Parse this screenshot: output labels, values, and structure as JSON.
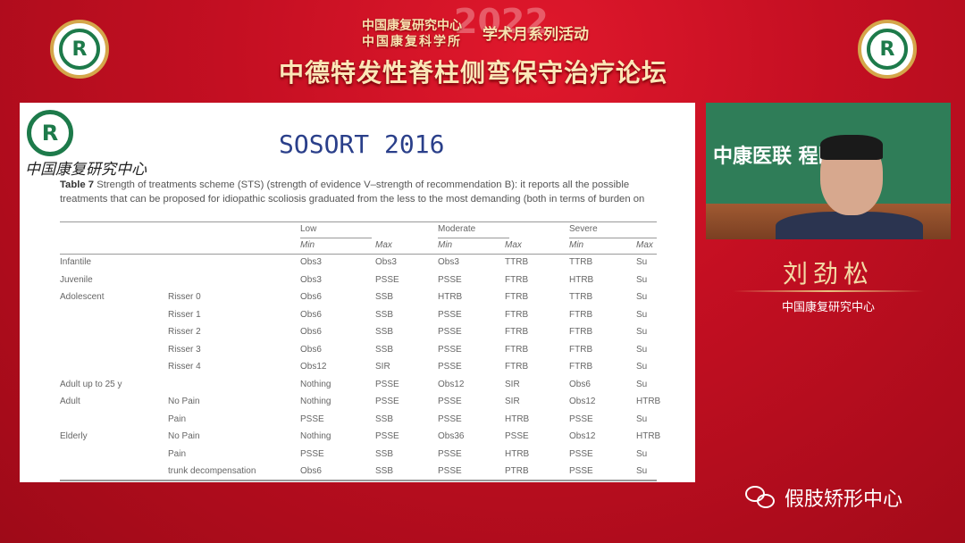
{
  "banner": {
    "org_line1": "中国康复研究中心",
    "org_line2": "中国康复科学所",
    "year": "2022",
    "series": "学术月系列活动",
    "forum_title": "中德特发性脊柱侧弯保守治疗论坛"
  },
  "logos": {
    "left": "CRRC logo",
    "right": "CRRC logo",
    "glyph": "R"
  },
  "slide": {
    "title": "SOSORT 2016",
    "logo_text": "中国康复研究中心",
    "caption_label": "Table 7",
    "caption": " Strength of treatments scheme (STS) (strength of evidence V–strength of recommendation B): it reports all the possible treatments that can be proposed for idiopathic scoliosis graduated from the less to the most demanding (both in terms of burden on",
    "table": {
      "groups": [
        "Low",
        "Moderate",
        "Severe"
      ],
      "subheaders": [
        "Min",
        "Max",
        "Min",
        "Max",
        "Min",
        "Max"
      ],
      "rows": [
        [
          "Infantile",
          "",
          "Obs3",
          "Obs3",
          "Obs3",
          "TTRB",
          "TTRB",
          "Su"
        ],
        [
          "Juvenile",
          "",
          "Obs3",
          "PSSE",
          "PSSE",
          "FTRB",
          "HTRB",
          "Su"
        ],
        [
          "Adolescent",
          "Risser 0",
          "Obs6",
          "SSB",
          "HTRB",
          "FTRB",
          "TTRB",
          "Su"
        ],
        [
          "",
          "Risser 1",
          "Obs6",
          "SSB",
          "PSSE",
          "FTRB",
          "FTRB",
          "Su"
        ],
        [
          "",
          "Risser 2",
          "Obs6",
          "SSB",
          "PSSE",
          "FTRB",
          "FTRB",
          "Su"
        ],
        [
          "",
          "Risser 3",
          "Obs6",
          "SSB",
          "PSSE",
          "FTRB",
          "FTRB",
          "Su"
        ],
        [
          "",
          "Risser 4",
          "Obs12",
          "SIR",
          "PSSE",
          "FTRB",
          "FTRB",
          "Su"
        ],
        [
          "Adult up to 25 y",
          "",
          "Nothing",
          "PSSE",
          "Obs12",
          "SIR",
          "Obs6",
          "Su"
        ],
        [
          "Adult",
          "No Pain",
          "Nothing",
          "PSSE",
          "PSSE",
          "SIR",
          "Obs12",
          "HTRB"
        ],
        [
          "",
          "Pain",
          "PSSE",
          "SSB",
          "PSSE",
          "HTRB",
          "PSSE",
          "Su"
        ],
        [
          "Elderly",
          "No Pain",
          "Nothing",
          "PSSE",
          "Obs36",
          "PSSE",
          "Obs12",
          "HTRB"
        ],
        [
          "",
          "Pain",
          "PSSE",
          "SSB",
          "PSSE",
          "HTRB",
          "PSSE",
          "Su"
        ],
        [
          "",
          "trunk decompensation",
          "Obs6",
          "SSB",
          "PSSE",
          "PTRB",
          "PSSE",
          "Su"
        ]
      ]
    }
  },
  "webcam": {
    "backdrop_text": "中康医联  程医学中"
  },
  "speaker": {
    "name": "刘劲松",
    "org": "中国康复研究中心"
  },
  "watermark": {
    "icon": "wechat-icon",
    "text": "假肢矫形中心"
  },
  "colors": {
    "background": "#c40f22",
    "gold": "#f3dba6",
    "logo_green": "#1d7a4a",
    "slide_title": "#2a3f8a"
  }
}
